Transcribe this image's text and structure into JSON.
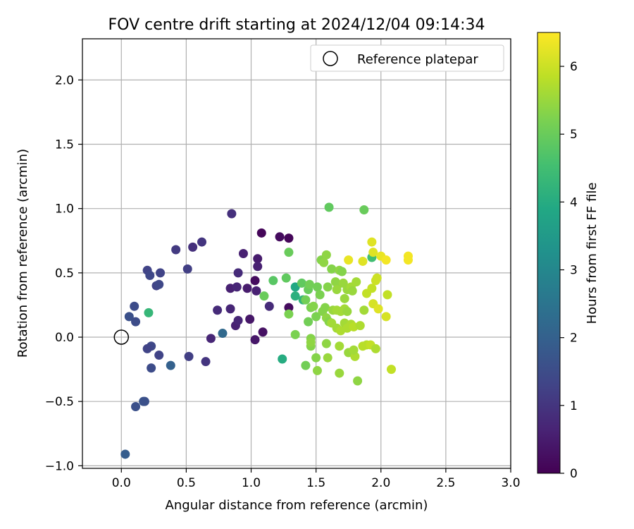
{
  "chart_data": {
    "type": "scatter",
    "title": "FOV centre drift starting at 2024/12/04 09:14:34",
    "xlabel": "Angular distance from reference (arcmin)",
    "ylabel": "Rotation from reference (arcmin)",
    "xlim": [
      -0.3,
      3.0
    ],
    "ylim": [
      -1.02,
      2.32
    ],
    "xticks": [
      0.0,
      0.5,
      1.0,
      1.5,
      2.0,
      2.5,
      3.0
    ],
    "xtick_labels": [
      "0.0",
      "0.5",
      "1.0",
      "1.5",
      "2.0",
      "2.5",
      "3.0"
    ],
    "yticks": [
      -1.0,
      -0.5,
      0.0,
      0.5,
      1.0,
      1.5,
      2.0
    ],
    "ytick_labels": [
      "−1.0",
      "−0.5",
      "0.0",
      "0.5",
      "1.0",
      "1.5",
      "2.0"
    ],
    "grid": true,
    "legend": {
      "placement": "top-right",
      "entries": [
        "Reference platepar"
      ]
    },
    "reference_point": {
      "x": 0.0,
      "y": 0.0
    },
    "colorbar": {
      "label": "Hours from first FF file",
      "range": [
        0,
        6.5
      ],
      "ticks": [
        0,
        1,
        2,
        3,
        4,
        5,
        6
      ],
      "tick_labels": [
        "0",
        "1",
        "2",
        "3",
        "4",
        "5",
        "6"
      ],
      "colormap": "viridis"
    },
    "points": [
      {
        "x": 1.08,
        "y": 0.81,
        "h": 0.1
      },
      {
        "x": 1.22,
        "y": 0.78,
        "h": 0.2
      },
      {
        "x": 1.29,
        "y": 0.77,
        "h": 0.1
      },
      {
        "x": 1.29,
        "y": 0.23,
        "h": 0.2
      },
      {
        "x": 1.03,
        "y": 0.44,
        "h": 0.2
      },
      {
        "x": 1.09,
        "y": 0.04,
        "h": 0.3
      },
      {
        "x": 0.99,
        "y": 0.14,
        "h": 0.4
      },
      {
        "x": 1.03,
        "y": -0.02,
        "h": 0.4
      },
      {
        "x": 1.05,
        "y": 0.61,
        "h": 0.5
      },
      {
        "x": 1.05,
        "y": 0.55,
        "h": 0.6
      },
      {
        "x": 0.94,
        "y": 0.65,
        "h": 0.6
      },
      {
        "x": 0.84,
        "y": 0.38,
        "h": 0.6
      },
      {
        "x": 0.84,
        "y": 0.22,
        "h": 0.7
      },
      {
        "x": 0.89,
        "y": 0.39,
        "h": 0.7
      },
      {
        "x": 0.97,
        "y": 0.38,
        "h": 0.5
      },
      {
        "x": 1.04,
        "y": 0.36,
        "h": 0.6
      },
      {
        "x": 0.88,
        "y": 0.09,
        "h": 0.6
      },
      {
        "x": 0.9,
        "y": 0.13,
        "h": 0.7
      },
      {
        "x": 0.9,
        "y": 0.5,
        "h": 0.8
      },
      {
        "x": 0.85,
        "y": 0.96,
        "h": 0.9
      },
      {
        "x": 1.14,
        "y": 0.24,
        "h": 0.8
      },
      {
        "x": 0.69,
        "y": -0.01,
        "h": 0.7
      },
      {
        "x": 0.74,
        "y": 0.21,
        "h": 0.8
      },
      {
        "x": 0.62,
        "y": 0.74,
        "h": 1.0
      },
      {
        "x": 0.55,
        "y": 0.7,
        "h": 0.9
      },
      {
        "x": 0.42,
        "y": 0.68,
        "h": 1.1
      },
      {
        "x": 0.51,
        "y": 0.53,
        "h": 1.2
      },
      {
        "x": 0.65,
        "y": -0.19,
        "h": 1.0
      },
      {
        "x": 0.52,
        "y": -0.15,
        "h": 1.2
      },
      {
        "x": 0.3,
        "y": 0.5,
        "h": 1.3
      },
      {
        "x": 0.2,
        "y": 0.52,
        "h": 1.3
      },
      {
        "x": 0.22,
        "y": 0.48,
        "h": 1.4
      },
      {
        "x": 0.27,
        "y": 0.4,
        "h": 1.3
      },
      {
        "x": 0.29,
        "y": 0.41,
        "h": 1.4
      },
      {
        "x": 0.29,
        "y": -0.14,
        "h": 1.3
      },
      {
        "x": 0.23,
        "y": -0.07,
        "h": 1.4
      },
      {
        "x": 0.2,
        "y": -0.09,
        "h": 1.3
      },
      {
        "x": 0.23,
        "y": -0.24,
        "h": 1.5
      },
      {
        "x": 0.1,
        "y": 0.24,
        "h": 1.5
      },
      {
        "x": 0.06,
        "y": 0.16,
        "h": 1.6
      },
      {
        "x": 0.11,
        "y": 0.12,
        "h": 1.5
      },
      {
        "x": 0.11,
        "y": -0.54,
        "h": 1.6
      },
      {
        "x": 0.17,
        "y": -0.5,
        "h": 1.7
      },
      {
        "x": 0.18,
        "y": -0.5,
        "h": 1.6
      },
      {
        "x": 0.03,
        "y": -0.91,
        "h": 1.9
      },
      {
        "x": 0.38,
        "y": -0.22,
        "h": 2.0
      },
      {
        "x": 0.78,
        "y": 0.03,
        "h": 2.2
      },
      {
        "x": 0.21,
        "y": 0.19,
        "h": 4.3
      },
      {
        "x": 1.24,
        "y": -0.17,
        "h": 4.0
      },
      {
        "x": 1.34,
        "y": 0.39,
        "h": 3.9
      },
      {
        "x": 1.34,
        "y": 0.32,
        "h": 4.1
      },
      {
        "x": 1.4,
        "y": 0.29,
        "h": 4.2
      },
      {
        "x": 1.93,
        "y": 0.62,
        "h": 4.5
      },
      {
        "x": 1.6,
        "y": 1.01,
        "h": 4.9
      },
      {
        "x": 1.87,
        "y": 0.99,
        "h": 5.0
      },
      {
        "x": 1.29,
        "y": 0.66,
        "h": 5.0
      },
      {
        "x": 1.29,
        "y": 0.18,
        "h": 5.2
      },
      {
        "x": 1.17,
        "y": 0.44,
        "h": 4.8
      },
      {
        "x": 1.27,
        "y": 0.46,
        "h": 4.9
      },
      {
        "x": 1.1,
        "y": 0.32,
        "h": 5.0
      },
      {
        "x": 1.39,
        "y": 0.42,
        "h": 4.9
      },
      {
        "x": 1.44,
        "y": 0.37,
        "h": 5.0
      },
      {
        "x": 1.45,
        "y": 0.41,
        "h": 5.1
      },
      {
        "x": 1.42,
        "y": 0.29,
        "h": 5.1
      },
      {
        "x": 1.44,
        "y": 0.12,
        "h": 5.1
      },
      {
        "x": 1.46,
        "y": 0.23,
        "h": 5.2
      },
      {
        "x": 1.48,
        "y": 0.24,
        "h": 5.3
      },
      {
        "x": 1.51,
        "y": 0.39,
        "h": 5.1
      },
      {
        "x": 1.5,
        "y": 0.16,
        "h": 5.2
      },
      {
        "x": 1.53,
        "y": 0.33,
        "h": 5.2
      },
      {
        "x": 1.55,
        "y": 0.2,
        "h": 5.3
      },
      {
        "x": 1.57,
        "y": 0.23,
        "h": 5.3
      },
      {
        "x": 1.58,
        "y": 0.15,
        "h": 5.4
      },
      {
        "x": 1.6,
        "y": 0.12,
        "h": 5.3
      },
      {
        "x": 1.59,
        "y": 0.39,
        "h": 5.3
      },
      {
        "x": 1.34,
        "y": 0.02,
        "h": 5.2
      },
      {
        "x": 1.42,
        "y": -0.22,
        "h": 5.1
      },
      {
        "x": 1.46,
        "y": -0.01,
        "h": 5.3
      },
      {
        "x": 1.46,
        "y": -0.07,
        "h": 5.3
      },
      {
        "x": 1.46,
        "y": -0.04,
        "h": 5.4
      },
      {
        "x": 1.5,
        "y": -0.16,
        "h": 5.3
      },
      {
        "x": 1.51,
        "y": -0.26,
        "h": 5.4
      },
      {
        "x": 1.58,
        "y": -0.05,
        "h": 5.4
      },
      {
        "x": 1.59,
        "y": -0.16,
        "h": 5.5
      },
      {
        "x": 1.54,
        "y": 0.6,
        "h": 5.3
      },
      {
        "x": 1.58,
        "y": 0.64,
        "h": 5.4
      },
      {
        "x": 1.56,
        "y": 0.58,
        "h": 5.4
      },
      {
        "x": 1.62,
        "y": 0.53,
        "h": 5.3
      },
      {
        "x": 1.68,
        "y": 0.52,
        "h": 5.4
      },
      {
        "x": 1.7,
        "y": 0.51,
        "h": 5.3
      },
      {
        "x": 1.65,
        "y": 0.43,
        "h": 5.4
      },
      {
        "x": 1.67,
        "y": 0.41,
        "h": 5.4
      },
      {
        "x": 1.71,
        "y": 0.42,
        "h": 5.5
      },
      {
        "x": 1.66,
        "y": 0.37,
        "h": 5.5
      },
      {
        "x": 1.72,
        "y": 0.3,
        "h": 5.5
      },
      {
        "x": 1.74,
        "y": 0.37,
        "h": 5.5
      },
      {
        "x": 1.77,
        "y": 0.39,
        "h": 5.6
      },
      {
        "x": 1.78,
        "y": 0.36,
        "h": 5.5
      },
      {
        "x": 1.81,
        "y": 0.43,
        "h": 5.6
      },
      {
        "x": 1.63,
        "y": 0.21,
        "h": 5.5
      },
      {
        "x": 1.66,
        "y": 0.21,
        "h": 5.6
      },
      {
        "x": 1.69,
        "y": 0.2,
        "h": 5.6
      },
      {
        "x": 1.72,
        "y": 0.22,
        "h": 5.6
      },
      {
        "x": 1.74,
        "y": 0.2,
        "h": 5.5
      },
      {
        "x": 1.62,
        "y": 0.11,
        "h": 5.6
      },
      {
        "x": 1.66,
        "y": 0.07,
        "h": 5.6
      },
      {
        "x": 1.69,
        "y": 0.05,
        "h": 5.7
      },
      {
        "x": 1.72,
        "y": 0.11,
        "h": 5.6
      },
      {
        "x": 1.74,
        "y": 0.07,
        "h": 5.7
      },
      {
        "x": 1.77,
        "y": 0.1,
        "h": 5.7
      },
      {
        "x": 1.79,
        "y": 0.08,
        "h": 5.8
      },
      {
        "x": 1.84,
        "y": 0.09,
        "h": 5.7
      },
      {
        "x": 1.87,
        "y": 0.21,
        "h": 5.6
      },
      {
        "x": 1.68,
        "y": -0.07,
        "h": 5.6
      },
      {
        "x": 1.68,
        "y": -0.28,
        "h": 5.5
      },
      {
        "x": 1.75,
        "y": -0.12,
        "h": 5.5
      },
      {
        "x": 1.8,
        "y": -0.15,
        "h": 5.7
      },
      {
        "x": 1.82,
        "y": -0.34,
        "h": 5.4
      },
      {
        "x": 1.79,
        "y": -0.1,
        "h": 5.6
      },
      {
        "x": 1.86,
        "y": -0.07,
        "h": 5.8
      },
      {
        "x": 1.89,
        "y": -0.06,
        "h": 5.8
      },
      {
        "x": 1.92,
        "y": -0.06,
        "h": 5.9
      },
      {
        "x": 1.96,
        "y": -0.09,
        "h": 5.7
      },
      {
        "x": 1.89,
        "y": 0.34,
        "h": 5.9
      },
      {
        "x": 1.93,
        "y": 0.38,
        "h": 5.9
      },
      {
        "x": 1.96,
        "y": 0.44,
        "h": 6.0
      },
      {
        "x": 1.97,
        "y": 0.46,
        "h": 6.0
      },
      {
        "x": 2.05,
        "y": 0.33,
        "h": 5.9
      },
      {
        "x": 1.94,
        "y": 0.26,
        "h": 6.1
      },
      {
        "x": 1.98,
        "y": 0.22,
        "h": 6.2
      },
      {
        "x": 2.04,
        "y": 0.16,
        "h": 6.1
      },
      {
        "x": 2.08,
        "y": -0.25,
        "h": 5.9
      },
      {
        "x": 1.75,
        "y": 0.6,
        "h": 6.3
      },
      {
        "x": 1.86,
        "y": 0.59,
        "h": 6.2
      },
      {
        "x": 1.93,
        "y": 0.74,
        "h": 6.2
      },
      {
        "x": 1.94,
        "y": 0.66,
        "h": 6.2
      },
      {
        "x": 2.0,
        "y": 0.63,
        "h": 6.3
      },
      {
        "x": 2.04,
        "y": 0.6,
        "h": 6.4
      },
      {
        "x": 2.21,
        "y": 0.63,
        "h": 6.4
      },
      {
        "x": 2.21,
        "y": 0.6,
        "h": 6.4
      }
    ]
  }
}
